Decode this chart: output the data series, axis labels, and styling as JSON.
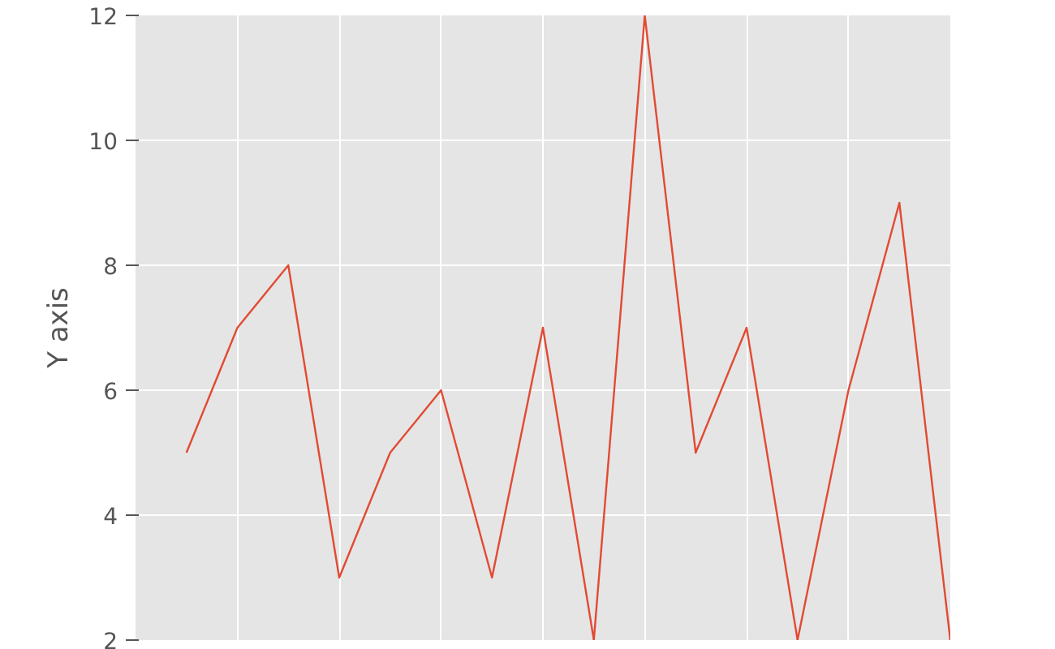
{
  "chart_data": {
    "type": "line",
    "ylabel": "Y axis",
    "categories": [
      null,
      null,
      null,
      null,
      null,
      null,
      null,
      null,
      null,
      null,
      null,
      null,
      null,
      null,
      null,
      null
    ],
    "series": [
      {
        "color": "#e24a33",
        "values": [
          5,
          7,
          8,
          3,
          5,
          6,
          3,
          7,
          2,
          12,
          5,
          7,
          2,
          6,
          9,
          2
        ]
      }
    ],
    "ylim": [
      2,
      12
    ],
    "yticks": [
      2,
      4,
      6,
      8,
      10,
      12
    ],
    "grid": true,
    "tick_labels": "y",
    "line_style": "solid"
  }
}
